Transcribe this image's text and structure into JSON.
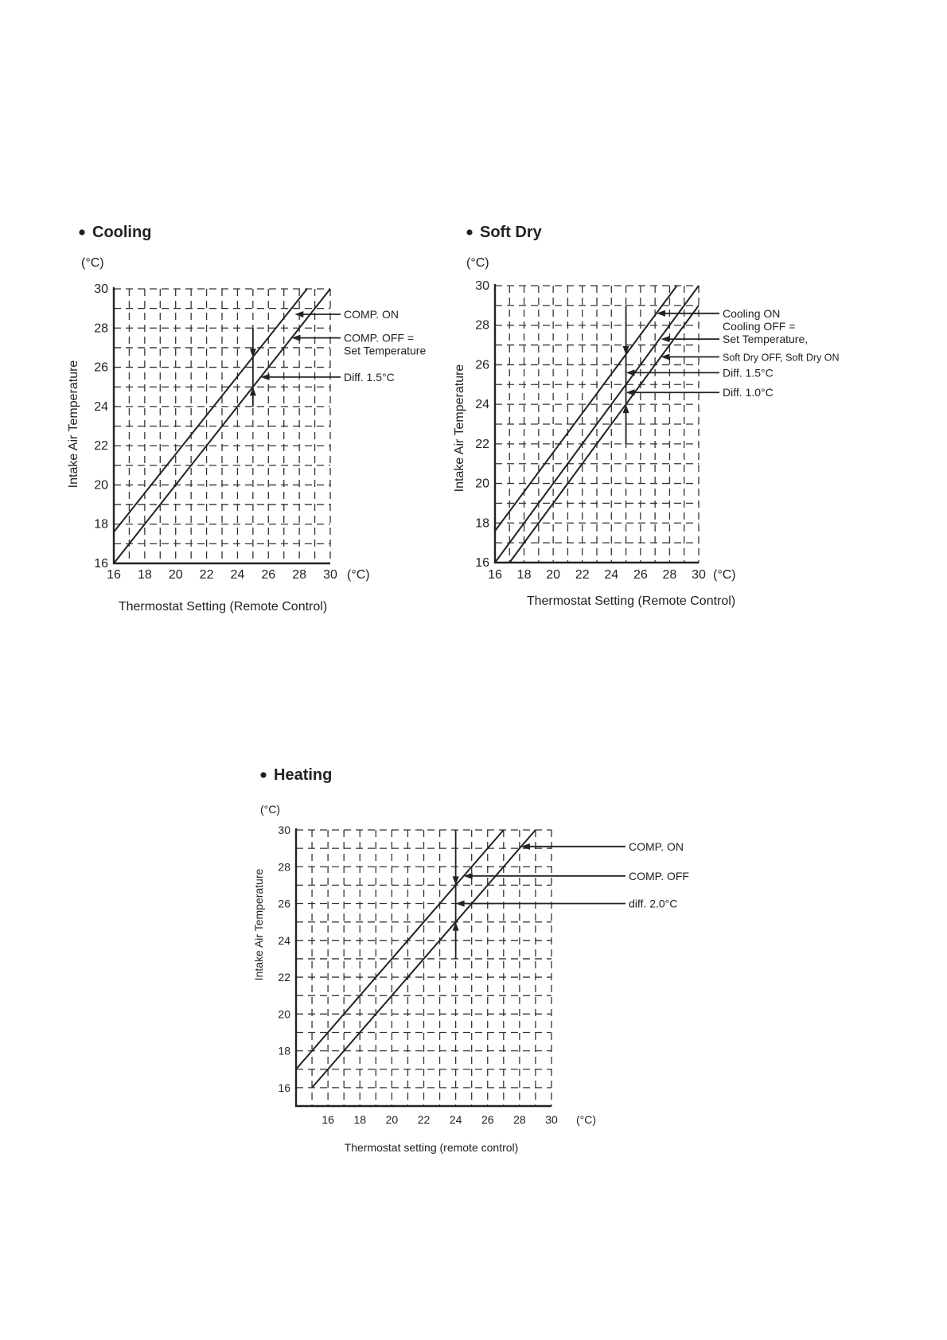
{
  "chart_data": [
    {
      "type": "line",
      "title": "Cooling",
      "yunit": "(°C)",
      "xunit": "(°C)",
      "xlabel": "Thermostat Setting (Remote Control)",
      "ylabel": "Intake Air Temperature",
      "xlim": [
        16,
        30
      ],
      "ylim": [
        16,
        30
      ],
      "xticks": [
        "16",
        "18",
        "20",
        "22",
        "24",
        "26",
        "28",
        "30"
      ],
      "yticks": [
        "16",
        "18",
        "20",
        "22",
        "24",
        "26",
        "28",
        "30"
      ],
      "grid": true,
      "series": [
        {
          "name": "COMP. ON",
          "x": [
            16,
            28.5
          ],
          "y": [
            17.6,
            30
          ]
        },
        {
          "name": "COMP. OFF = Set Temperature",
          "x": [
            16,
            30
          ],
          "y": [
            16,
            30
          ]
        }
      ],
      "marker": {
        "x": 25,
        "y": [
          24,
          28
        ],
        "arrows": [
          {
            "y": 26.5,
            "dir": "down"
          },
          {
            "y": 25,
            "dir": "up"
          }
        ]
      },
      "annotations": [
        {
          "lines": [
            "COMP. ON"
          ],
          "point": [
            27.7,
            28.7
          ]
        },
        {
          "lines": [
            "COMP. OFF =",
            "Set Temperature"
          ],
          "point": [
            27.5,
            27.5
          ]
        },
        {
          "lines": [
            "Diff. 1.5°C"
          ],
          "point": [
            25.5,
            25.5
          ]
        }
      ]
    },
    {
      "type": "line",
      "title": "Soft Dry",
      "yunit": "(°C)",
      "xunit": "(°C)",
      "xlabel": "Thermostat Setting (Remote Control)",
      "ylabel": "Intake Air Temperature",
      "xlim": [
        16,
        30
      ],
      "ylim": [
        16,
        30
      ],
      "xticks": [
        "16",
        "18",
        "20",
        "22",
        "24",
        "26",
        "28",
        "30"
      ],
      "yticks": [
        "16",
        "18",
        "20",
        "22",
        "24",
        "26",
        "28",
        "30"
      ],
      "grid": true,
      "series": [
        {
          "name": "Cooling ON",
          "x": [
            16,
            28.5
          ],
          "y": [
            17.6,
            30
          ]
        },
        {
          "name": "Cooling OFF = Set Temperature, Soft Dry ON",
          "x": [
            16,
            30
          ],
          "y": [
            16,
            30
          ]
        },
        {
          "name": "Soft Dry OFF",
          "x": [
            17,
            30
          ],
          "y": [
            16,
            29
          ]
        }
      ],
      "marker": {
        "x": 25,
        "y": [
          22,
          29
        ],
        "arrows": [
          {
            "y": 26.5,
            "dir": "down"
          },
          {
            "y": 24,
            "dir": "up"
          }
        ]
      },
      "annotations": [
        {
          "lines": [
            "Cooling ON"
          ],
          "point": [
            27.1,
            28.6
          ]
        },
        {
          "lines": [
            "Cooling OFF =",
            "Set Temperature,"
          ],
          "point": [
            27.4,
            27.3
          ]
        },
        {
          "lines": [
            "Soft Dry OFF, Soft Dry ON"
          ],
          "point": [
            27.4,
            26.4
          ]
        },
        {
          "lines": [
            "Diff. 1.5°C"
          ],
          "point": [
            25,
            25.6
          ]
        },
        {
          "lines": [
            "Diff. 1.0°C"
          ],
          "point": [
            25,
            24.6
          ]
        }
      ]
    },
    {
      "type": "line",
      "title": "Heating",
      "yunit": "(°C)",
      "xunit": "(°C)",
      "xlabel": "Thermostat setting (remote control)",
      "ylabel": "Intake Air Temperature",
      "xlim": [
        14,
        30
      ],
      "ylim": [
        15,
        30
      ],
      "xticks": [
        "16",
        "18",
        "20",
        "22",
        "24",
        "26",
        "28",
        "30"
      ],
      "yticks": [
        "16",
        "18",
        "20",
        "22",
        "24",
        "26",
        "28",
        "30"
      ],
      "grid": true,
      "series": [
        {
          "name": "COMP. OFF",
          "x": [
            14,
            27
          ],
          "y": [
            17,
            30
          ]
        },
        {
          "name": "COMP. ON",
          "x": [
            15,
            29
          ],
          "y": [
            16,
            30
          ]
        }
      ],
      "marker": {
        "x": 24,
        "y": [
          23,
          30
        ],
        "arrows": [
          {
            "y": 27,
            "dir": "down"
          },
          {
            "y": 25,
            "dir": "up"
          }
        ]
      },
      "annotations": [
        {
          "lines": [
            "COMP. ON"
          ],
          "point": [
            28.1,
            29.1
          ]
        },
        {
          "lines": [
            "COMP. OFF"
          ],
          "point": [
            24.5,
            27.5
          ]
        },
        {
          "lines": [
            "diff. 2.0°C"
          ],
          "point": [
            24,
            26
          ]
        }
      ]
    }
  ]
}
